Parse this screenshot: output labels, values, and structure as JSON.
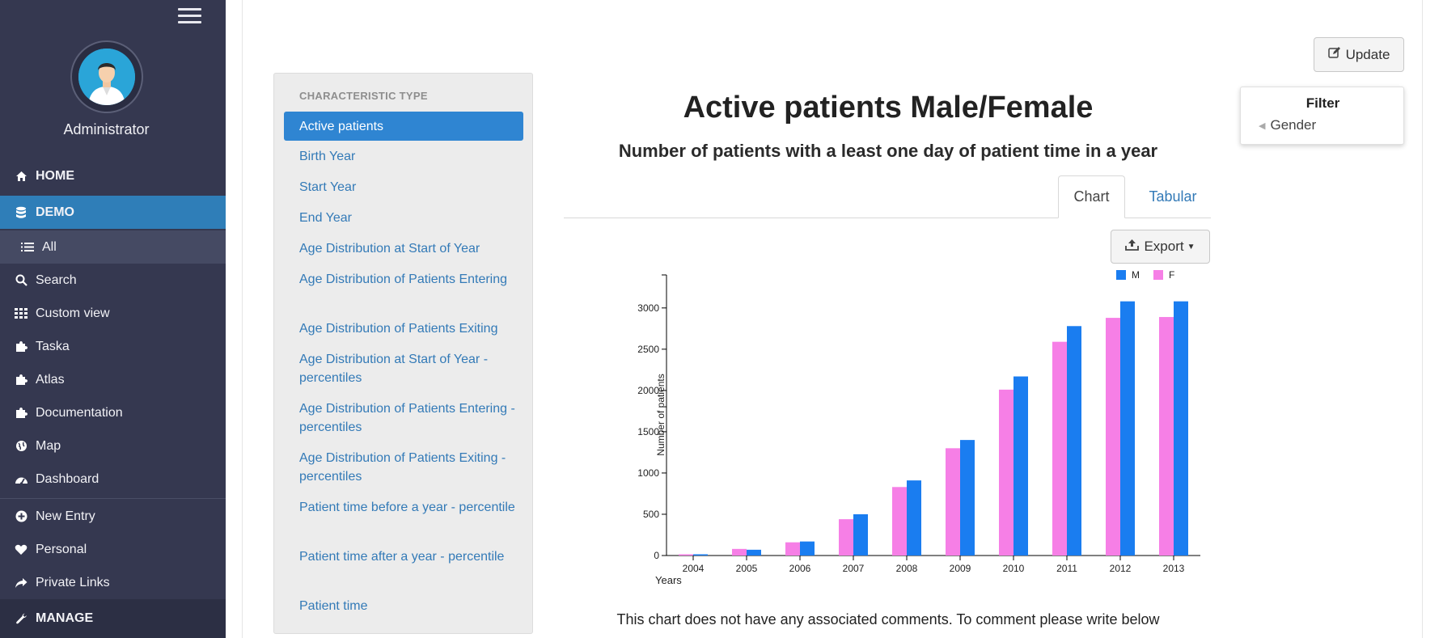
{
  "sidebar": {
    "user_name": "Administrator",
    "items": [
      {
        "label": "HOME",
        "icon": "home-icon"
      },
      {
        "label": "DEMO",
        "icon": "database-icon"
      },
      {
        "label": "All",
        "icon": "list-icon"
      },
      {
        "label": "Search",
        "icon": "search-icon"
      },
      {
        "label": "Custom view",
        "icon": "grid-icon"
      },
      {
        "label": "Taska",
        "icon": "puzzle-icon"
      },
      {
        "label": "Atlas",
        "icon": "puzzle-icon"
      },
      {
        "label": "Documentation",
        "icon": "puzzle-icon"
      },
      {
        "label": "Map",
        "icon": "globe-icon"
      },
      {
        "label": "Dashboard",
        "icon": "dashboard-icon"
      },
      {
        "label": "New Entry",
        "icon": "plus-circle-icon"
      },
      {
        "label": "Personal",
        "icon": "heart-icon"
      },
      {
        "label": "Private Links",
        "icon": "share-icon"
      },
      {
        "label": "MANAGE",
        "icon": "wrench-icon"
      }
    ]
  },
  "panel": {
    "heading": "CHARACTERISTIC TYPE",
    "items": [
      "Active patients",
      "Birth Year",
      "Start Year",
      "End Year",
      "Age Distribution at Start of Year",
      "Age Distribution of Patients Entering",
      "Age Distribution of Patients Exiting",
      "Age Distribution at Start of Year - percentiles",
      "Age Distribution of Patients Entering - percentiles",
      "Age Distribution of Patients Exiting - percentiles",
      "Patient time before a year - percentile",
      "Patient time after a year - percentile",
      "Patient time"
    ]
  },
  "main": {
    "title": "Active patients Male/Female",
    "subtitle": "Number of patients with a least one day of patient time in a year",
    "tabs": [
      "Chart",
      "Tabular"
    ],
    "export_label": "Export",
    "update_label": "Update",
    "filter_title": "Filter",
    "filter_gender": "Gender",
    "comments": "This chart does not have any associated comments. To comment please write below"
  },
  "colors": {
    "male": "#1a7df0",
    "female": "#f67fe6",
    "sidebar_bg": "#353850",
    "active_blue": "#2f85d2"
  },
  "chart_data": {
    "type": "bar",
    "categories": [
      "2004",
      "2005",
      "2006",
      "2007",
      "2008",
      "2009",
      "2010",
      "2011",
      "2012",
      "2013"
    ],
    "series": [
      {
        "name": "F",
        "values": [
          15,
          80,
          160,
          440,
          830,
          1300,
          2010,
          2590,
          2880,
          2890
        ]
      },
      {
        "name": "M",
        "values": [
          15,
          70,
          170,
          500,
          910,
          1400,
          2170,
          2780,
          3080,
          3080
        ]
      }
    ],
    "xlabel": "Years",
    "ylabel": "Number of patients",
    "ylim": [
      0,
      3400
    ],
    "yticks": [
      0,
      500,
      1000,
      1500,
      2000,
      2500,
      3000
    ],
    "legend": "top-right",
    "grid": false
  }
}
